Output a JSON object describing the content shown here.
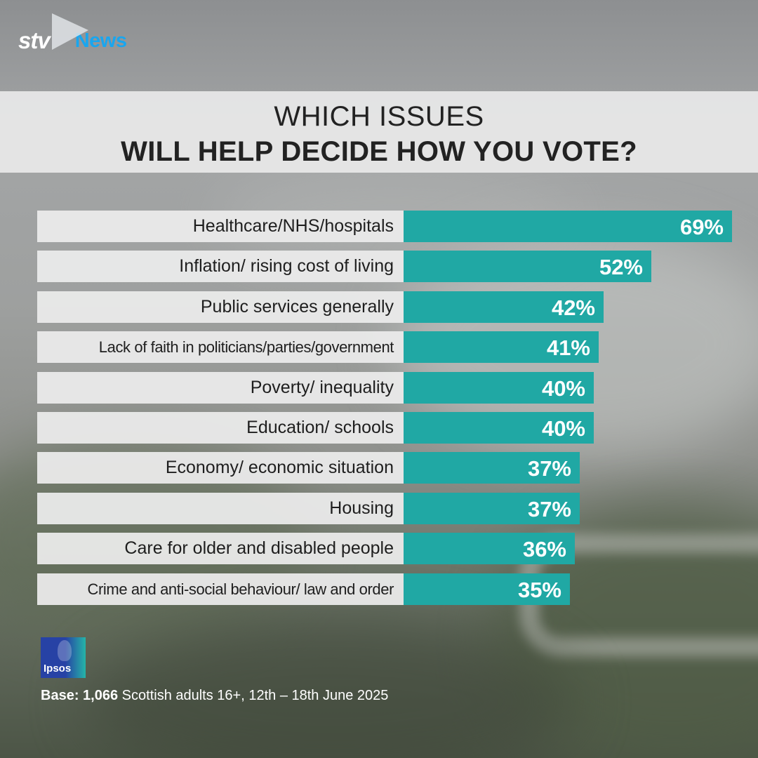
{
  "brand": {
    "logo_text": "stv",
    "section": "News",
    "accent": "#19a6ef"
  },
  "title": {
    "line1": "WHICH ISSUES",
    "line2": "WILL HELP DECIDE HOW YOU VOTE?"
  },
  "chart_data": {
    "type": "bar",
    "orientation": "horizontal",
    "bar_color": "#20a8a4",
    "categories": [
      "Healthcare/NHS/hospitals",
      "Inflation/ rising cost of living",
      "Public services generally",
      "Lack of faith in politicians/parties/government",
      "Poverty/ inequality",
      "Education/ schools",
      "Economy/ economic situation",
      "Housing",
      "Care for older and disabled people",
      "Crime and anti-social behaviour/ law and order"
    ],
    "values": [
      69,
      52,
      42,
      41,
      40,
      40,
      37,
      37,
      36,
      35
    ],
    "value_labels": [
      "69%",
      "52%",
      "42%",
      "41%",
      "40%",
      "40%",
      "37%",
      "37%",
      "36%",
      "35%"
    ],
    "xlim": [
      0,
      70
    ]
  },
  "footer": {
    "pollster": "Ipsos",
    "base_label": "Base:",
    "base_count": "1,066",
    "base_text": "Scottish adults 16+, 12th – 18th June 2025"
  }
}
